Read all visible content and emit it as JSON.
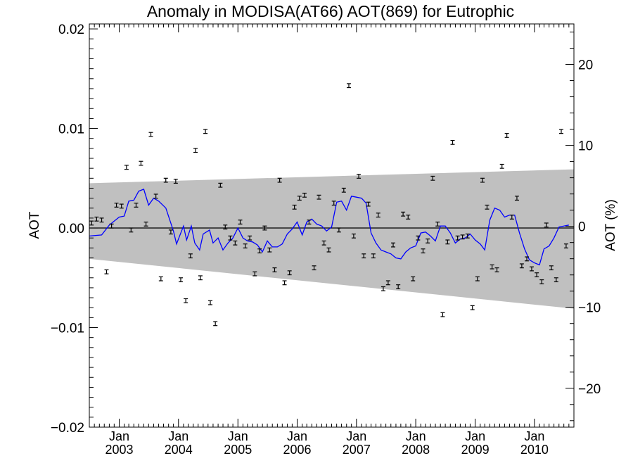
{
  "chart_data": {
    "type": "scatter",
    "title": "Anomaly in MODISA(AT66) AOT(869) for Eutrophic",
    "ylabel": "AOT",
    "y2label": "AOT (%)",
    "xlabel": "",
    "xlim": [
      "2002-07-01",
      "2010-09-01"
    ],
    "ylim": [
      -0.02,
      0.0205
    ],
    "y2lim": [
      -24.8,
      25.0
    ],
    "yticks": [
      -0.02,
      -0.01,
      0.0,
      0.01,
      0.02
    ],
    "ytick_labels": [
      "−0.02",
      "−0.01",
      "0.00",
      "0.01",
      "0.02"
    ],
    "y2ticks": [
      -20,
      -10,
      0,
      10,
      20
    ],
    "y2tick_labels": [
      "−20",
      "−10",
      "0",
      "10",
      "20"
    ],
    "xticks": [
      {
        "date": "2003-01-01",
        "month": "Jan",
        "year": "2003"
      },
      {
        "date": "2004-01-01",
        "month": "Jan",
        "year": "2004"
      },
      {
        "date": "2005-01-01",
        "month": "Jan",
        "year": "2005"
      },
      {
        "date": "2006-01-01",
        "month": "Jan",
        "year": "2006"
      },
      {
        "date": "2007-01-01",
        "month": "Jan",
        "year": "2007"
      },
      {
        "date": "2008-01-01",
        "month": "Jan",
        "year": "2008"
      },
      {
        "date": "2009-01-01",
        "month": "Jan",
        "year": "2009"
      },
      {
        "date": "2010-01-01",
        "month": "Jan",
        "year": "2010"
      }
    ],
    "band": {
      "x": [
        "2002-07-01",
        "2010-09-01"
      ],
      "upper": [
        0.0045,
        0.0059
      ],
      "lower": [
        -0.0031,
        -0.0081
      ],
      "color": "#c0c0c0"
    },
    "zero_line": 0.0,
    "monthly_points": {
      "x_start": "2002-07",
      "error": 0.0002,
      "values": [
        0.0005,
        0.0009,
        0.0008,
        -0.0044,
        0.0002,
        0.0023,
        0.0022,
        0.0061,
        -0.0002,
        0.0023,
        0.0065,
        0.0004,
        0.0094,
        0.0032,
        -0.0051,
        0.0048,
        -0.0004,
        0.0047,
        -0.0052,
        -0.0073,
        -0.0028,
        0.0078,
        -0.005,
        0.0097,
        -0.0075,
        -0.0096,
        0.0043,
        0.0001,
        -0.001,
        -0.0015,
        0.0006,
        -0.0018,
        -0.001,
        -0.0046,
        -0.0023,
        0.0,
        -0.0022,
        -0.0042,
        0.0048,
        -0.0055,
        -0.0045,
        0.0021,
        0.003,
        0.0033,
        0.0006,
        -0.004,
        0.0031,
        -0.0015,
        -0.0022,
        0.0025,
        -0.0002,
        0.0038,
        0.0143,
        -0.0008,
        0.0052,
        -0.0028,
        0.0024,
        -0.0028,
        0.0013,
        -0.0061,
        -0.0055,
        -0.0017,
        -0.0059,
        0.0014,
        0.0011,
        -0.0051,
        -0.001,
        -0.0023,
        -0.0013,
        0.005,
        0.0004,
        -0.0087,
        -0.0014,
        0.0086,
        -0.001,
        -0.0009,
        -0.0008,
        -0.008,
        -0.0051,
        0.0048,
        0.0021,
        -0.0039,
        -0.0042,
        0.0062,
        0.0093,
        0.0011,
        0.003,
        -0.0038,
        -0.0031,
        -0.0041,
        -0.0047,
        -0.0054,
        0.0003,
        -0.004,
        -0.0052,
        0.0097,
        -0.0018
      ]
    },
    "smooth_line": {
      "color": "#0000ff",
      "points": [
        [
          "2002-07-01",
          -0.0008
        ],
        [
          "2002-09-15",
          -0.0007
        ],
        [
          "2002-11-01",
          0.0003
        ],
        [
          "2003-01-01",
          0.0011
        ],
        [
          "2003-02-01",
          0.0012
        ],
        [
          "2003-03-01",
          0.0027
        ],
        [
          "2003-04-01",
          0.0028
        ],
        [
          "2003-05-01",
          0.0037
        ],
        [
          "2003-06-01",
          0.0039
        ],
        [
          "2003-07-01",
          0.0023
        ],
        [
          "2003-08-01",
          0.003
        ],
        [
          "2003-09-01",
          0.0027
        ],
        [
          "2003-10-15",
          0.002
        ],
        [
          "2003-12-01",
          -0.0003
        ],
        [
          "2003-12-20",
          -0.0016
        ],
        [
          "2004-02-01",
          0.0002
        ],
        [
          "2004-02-20",
          -0.0012
        ],
        [
          "2004-03-20",
          0.0002
        ],
        [
          "2004-04-10",
          -0.0015
        ],
        [
          "2004-05-10",
          -0.0022
        ],
        [
          "2004-06-01",
          -0.0006
        ],
        [
          "2004-07-10",
          -0.0002
        ],
        [
          "2004-08-01",
          -0.0015
        ],
        [
          "2004-09-01",
          -0.001
        ],
        [
          "2004-10-01",
          -0.0022
        ],
        [
          "2004-11-01",
          -0.0015
        ],
        [
          "2004-12-01",
          -0.001
        ],
        [
          "2005-01-01",
          0.0
        ],
        [
          "2005-02-01",
          -0.001
        ],
        [
          "2005-03-01",
          -0.0013
        ],
        [
          "2005-04-01",
          -0.0014
        ],
        [
          "2005-05-01",
          -0.0017
        ],
        [
          "2005-06-01",
          -0.0024
        ],
        [
          "2005-07-01",
          -0.0013
        ],
        [
          "2005-08-01",
          -0.0019
        ],
        [
          "2005-09-01",
          -0.0019
        ],
        [
          "2005-10-01",
          -0.0016
        ],
        [
          "2005-11-01",
          -0.0006
        ],
        [
          "2005-12-01",
          -0.0001
        ],
        [
          "2006-01-01",
          0.0006
        ],
        [
          "2006-02-01",
          -0.0007
        ],
        [
          "2006-03-01",
          0.0006
        ],
        [
          "2006-04-01",
          0.0009
        ],
        [
          "2006-05-01",
          0.0004
        ],
        [
          "2006-06-01",
          0.0002
        ],
        [
          "2006-07-01",
          -0.0003
        ],
        [
          "2006-08-01",
          0.0001
        ],
        [
          "2006-09-01",
          0.0026
        ],
        [
          "2006-10-01",
          0.0027
        ],
        [
          "2006-11-01",
          0.0018
        ],
        [
          "2006-12-01",
          0.0032
        ],
        [
          "2007-01-01",
          0.0031
        ],
        [
          "2007-02-01",
          0.003
        ],
        [
          "2007-03-01",
          0.0025
        ],
        [
          "2007-04-01",
          -0.0005
        ],
        [
          "2007-05-01",
          -0.0015
        ],
        [
          "2007-06-01",
          -0.0022
        ],
        [
          "2007-07-01",
          -0.0024
        ],
        [
          "2007-08-01",
          -0.0026
        ],
        [
          "2007-09-01",
          -0.003
        ],
        [
          "2007-10-01",
          -0.0031
        ],
        [
          "2007-11-01",
          -0.0024
        ],
        [
          "2007-12-01",
          -0.002
        ],
        [
          "2008-01-01",
          -0.0018
        ],
        [
          "2008-02-01",
          -0.0005
        ],
        [
          "2008-03-01",
          -0.0004
        ],
        [
          "2008-04-01",
          -0.0008
        ],
        [
          "2008-05-01",
          -0.0013
        ],
        [
          "2008-06-01",
          0.0002
        ],
        [
          "2008-07-01",
          0.0002
        ],
        [
          "2008-08-01",
          -0.0005
        ],
        [
          "2008-09-01",
          -0.0015
        ],
        [
          "2008-10-01",
          -0.0011
        ],
        [
          "2008-11-01",
          -0.001
        ],
        [
          "2008-12-01",
          -0.0006
        ],
        [
          "2009-01-01",
          -0.0012
        ],
        [
          "2009-02-01",
          -0.0016
        ],
        [
          "2009-03-01",
          -0.0022
        ],
        [
          "2009-04-01",
          0.0008
        ],
        [
          "2009-05-01",
          0.002
        ],
        [
          "2009-06-01",
          0.0018
        ],
        [
          "2009-07-01",
          0.0011
        ],
        [
          "2009-08-01",
          0.0013
        ],
        [
          "2009-09-01",
          0.0013
        ],
        [
          "2009-10-01",
          -0.0005
        ],
        [
          "2009-11-01",
          -0.0021
        ],
        [
          "2009-12-01",
          -0.0032
        ],
        [
          "2010-01-01",
          -0.0035
        ],
        [
          "2010-02-01",
          -0.0037
        ],
        [
          "2010-03-01",
          -0.0021
        ],
        [
          "2010-04-01",
          -0.0018
        ],
        [
          "2010-05-01",
          -0.001
        ],
        [
          "2010-06-01",
          0.0001
        ],
        [
          "2010-07-01",
          0.0002
        ],
        [
          "2010-08-01",
          0.0003
        ]
      ]
    }
  }
}
